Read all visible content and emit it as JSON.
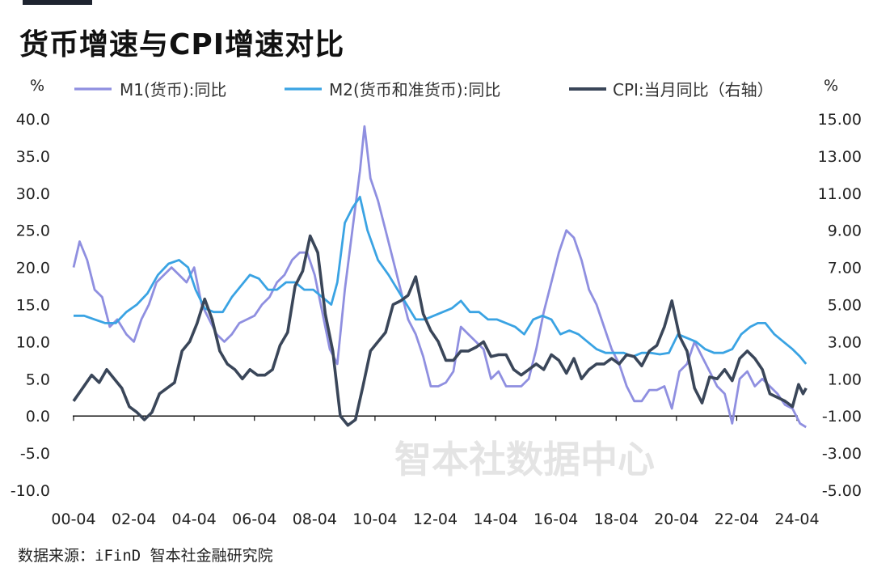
{
  "title": "货币增速与CPI增速对比",
  "source": "数据来源：iFinD 智本社金融研究院",
  "watermark": "智本社数据中心",
  "colors": {
    "M1": "#8f8fe0",
    "M2": "#3aa3e3",
    "CPI": "#3a4659"
  },
  "chart_data": {
    "type": "line",
    "title": "货币增速与CPI增速对比",
    "left_unit": "%",
    "right_unit": "%",
    "x_tick_labels": [
      "00-04",
      "02-04",
      "04-04",
      "06-04",
      "08-04",
      "10-04",
      "12-04",
      "14-04",
      "16-04",
      "18-04",
      "20-04",
      "22-04",
      "24-04"
    ],
    "x_range": [
      2000.25,
      2024.6
    ],
    "left_axis": {
      "min": -10,
      "max": 40,
      "step": 5,
      "tick_labels": [
        "40.0",
        "35.0",
        "30.0",
        "25.0",
        "20.0",
        "15.0",
        "10.0",
        "5.0",
        "0.0",
        "-5.0",
        "-10.0"
      ]
    },
    "right_axis": {
      "min": -5,
      "max": 15,
      "step": 2,
      "tick_labels": [
        "15.00",
        "13.00",
        "11.00",
        "9.00",
        "7.00",
        "5.00",
        "3.00",
        "1.00",
        "-1.00",
        "-3.00",
        "-5.00"
      ]
    },
    "legend_position": "top",
    "series": [
      {
        "name": "M1(货币):同比",
        "axis": "left",
        "points": [
          [
            2000.25,
            20
          ],
          [
            2000.45,
            23.5
          ],
          [
            2000.7,
            21
          ],
          [
            2000.95,
            17
          ],
          [
            2001.2,
            16
          ],
          [
            2001.45,
            12
          ],
          [
            2001.7,
            13
          ],
          [
            2002.0,
            11
          ],
          [
            2002.25,
            10
          ],
          [
            2002.5,
            13
          ],
          [
            2002.75,
            15
          ],
          [
            2003.0,
            18
          ],
          [
            2003.25,
            19
          ],
          [
            2003.5,
            20
          ],
          [
            2003.75,
            19
          ],
          [
            2004.0,
            18
          ],
          [
            2004.25,
            20
          ],
          [
            2004.5,
            15
          ],
          [
            2004.75,
            13
          ],
          [
            2005.0,
            11
          ],
          [
            2005.25,
            10
          ],
          [
            2005.5,
            11
          ],
          [
            2005.75,
            12.5
          ],
          [
            2006.0,
            13
          ],
          [
            2006.25,
            13.5
          ],
          [
            2006.5,
            15
          ],
          [
            2006.75,
            16
          ],
          [
            2007.0,
            18
          ],
          [
            2007.25,
            19
          ],
          [
            2007.5,
            21
          ],
          [
            2007.75,
            22
          ],
          [
            2008.0,
            22
          ],
          [
            2008.25,
            19
          ],
          [
            2008.5,
            14
          ],
          [
            2008.75,
            9
          ],
          [
            2009.0,
            7
          ],
          [
            2009.25,
            17
          ],
          [
            2009.5,
            25
          ],
          [
            2009.75,
            33
          ],
          [
            2009.9,
            39
          ],
          [
            2010.1,
            32
          ],
          [
            2010.35,
            29
          ],
          [
            2010.6,
            25
          ],
          [
            2010.85,
            21
          ],
          [
            2011.1,
            17
          ],
          [
            2011.35,
            13
          ],
          [
            2011.6,
            11
          ],
          [
            2011.85,
            8
          ],
          [
            2012.1,
            4
          ],
          [
            2012.35,
            4
          ],
          [
            2012.6,
            4.5
          ],
          [
            2012.85,
            6
          ],
          [
            2013.1,
            12
          ],
          [
            2013.35,
            11
          ],
          [
            2013.6,
            10
          ],
          [
            2013.85,
            9
          ],
          [
            2014.1,
            5
          ],
          [
            2014.35,
            6
          ],
          [
            2014.6,
            4
          ],
          [
            2014.85,
            4
          ],
          [
            2015.1,
            4
          ],
          [
            2015.35,
            5
          ],
          [
            2015.6,
            9
          ],
          [
            2015.85,
            14
          ],
          [
            2016.1,
            18
          ],
          [
            2016.35,
            22
          ],
          [
            2016.6,
            25
          ],
          [
            2016.85,
            24
          ],
          [
            2017.1,
            21
          ],
          [
            2017.35,
            17
          ],
          [
            2017.6,
            15
          ],
          [
            2017.85,
            12
          ],
          [
            2018.1,
            9
          ],
          [
            2018.35,
            7
          ],
          [
            2018.6,
            4
          ],
          [
            2018.85,
            2
          ],
          [
            2019.1,
            2
          ],
          [
            2019.35,
            3.5
          ],
          [
            2019.6,
            3.5
          ],
          [
            2019.85,
            4
          ],
          [
            2020.1,
            1
          ],
          [
            2020.35,
            6
          ],
          [
            2020.6,
            7
          ],
          [
            2020.85,
            10
          ],
          [
            2021.1,
            8
          ],
          [
            2021.35,
            6
          ],
          [
            2021.6,
            4
          ],
          [
            2021.85,
            3
          ],
          [
            2022.1,
            -1
          ],
          [
            2022.35,
            5
          ],
          [
            2022.6,
            6
          ],
          [
            2022.85,
            4
          ],
          [
            2023.1,
            5
          ],
          [
            2023.35,
            4
          ],
          [
            2023.6,
            3
          ],
          [
            2023.85,
            1.5
          ],
          [
            2024.1,
            1
          ],
          [
            2024.35,
            -1
          ],
          [
            2024.55,
            -1.5
          ]
        ]
      },
      {
        "name": "M2(货币和准货币):同比",
        "axis": "left",
        "points": [
          [
            2000.25,
            13.5
          ],
          [
            2000.6,
            13.5
          ],
          [
            2000.95,
            13
          ],
          [
            2001.3,
            12.5
          ],
          [
            2001.65,
            12.5
          ],
          [
            2002.0,
            14
          ],
          [
            2002.35,
            15
          ],
          [
            2002.7,
            16.5
          ],
          [
            2003.05,
            19
          ],
          [
            2003.4,
            20.5
          ],
          [
            2003.75,
            21
          ],
          [
            2004.05,
            20
          ],
          [
            2004.3,
            17
          ],
          [
            2004.6,
            14.5
          ],
          [
            2004.9,
            14
          ],
          [
            2005.2,
            14
          ],
          [
            2005.5,
            16
          ],
          [
            2005.8,
            17.5
          ],
          [
            2006.1,
            19
          ],
          [
            2006.4,
            18.5
          ],
          [
            2006.7,
            17
          ],
          [
            2007.0,
            17
          ],
          [
            2007.3,
            18
          ],
          [
            2007.6,
            18
          ],
          [
            2007.9,
            17
          ],
          [
            2008.2,
            17
          ],
          [
            2008.5,
            16
          ],
          [
            2008.8,
            15
          ],
          [
            2009.0,
            18
          ],
          [
            2009.25,
            26
          ],
          [
            2009.5,
            28
          ],
          [
            2009.75,
            29.5
          ],
          [
            2010.0,
            25
          ],
          [
            2010.35,
            21
          ],
          [
            2010.7,
            19
          ],
          [
            2011.0,
            17
          ],
          [
            2011.3,
            15
          ],
          [
            2011.6,
            13
          ],
          [
            2011.9,
            13
          ],
          [
            2012.2,
            13.5
          ],
          [
            2012.5,
            14
          ],
          [
            2012.8,
            14.5
          ],
          [
            2013.1,
            15.5
          ],
          [
            2013.4,
            14
          ],
          [
            2013.7,
            14
          ],
          [
            2014.0,
            13
          ],
          [
            2014.3,
            13
          ],
          [
            2014.6,
            12.5
          ],
          [
            2014.9,
            12
          ],
          [
            2015.2,
            11
          ],
          [
            2015.5,
            13
          ],
          [
            2015.8,
            13.5
          ],
          [
            2016.1,
            13
          ],
          [
            2016.4,
            11
          ],
          [
            2016.7,
            11.5
          ],
          [
            2017.0,
            11
          ],
          [
            2017.3,
            10
          ],
          [
            2017.6,
            9
          ],
          [
            2017.9,
            8.5
          ],
          [
            2018.2,
            8.5
          ],
          [
            2018.5,
            8.5
          ],
          [
            2018.8,
            8
          ],
          [
            2019.1,
            8.5
          ],
          [
            2019.4,
            8.5
          ],
          [
            2019.7,
            8.3
          ],
          [
            2020.0,
            8.5
          ],
          [
            2020.3,
            11
          ],
          [
            2020.6,
            10.5
          ],
          [
            2020.9,
            10
          ],
          [
            2021.2,
            9
          ],
          [
            2021.5,
            8.5
          ],
          [
            2021.8,
            8.5
          ],
          [
            2022.1,
            9
          ],
          [
            2022.4,
            11
          ],
          [
            2022.7,
            12
          ],
          [
            2022.95,
            12.5
          ],
          [
            2023.2,
            12.5
          ],
          [
            2023.5,
            11
          ],
          [
            2023.8,
            10
          ],
          [
            2024.1,
            9
          ],
          [
            2024.35,
            8
          ],
          [
            2024.55,
            7
          ]
        ]
      },
      {
        "name": "CPI:当月同比（右轴）",
        "axis": "right",
        "points": [
          [
            2000.25,
            -0.2
          ],
          [
            2000.55,
            0.5
          ],
          [
            2000.85,
            1.2
          ],
          [
            2001.1,
            0.8
          ],
          [
            2001.35,
            1.5
          ],
          [
            2001.6,
            1
          ],
          [
            2001.85,
            0.5
          ],
          [
            2002.1,
            -0.5
          ],
          [
            2002.35,
            -0.8
          ],
          [
            2002.6,
            -1.2
          ],
          [
            2002.85,
            -0.8
          ],
          [
            2003.1,
            0.2
          ],
          [
            2003.35,
            0.5
          ],
          [
            2003.6,
            0.8
          ],
          [
            2003.85,
            2.5
          ],
          [
            2004.1,
            3
          ],
          [
            2004.35,
            4
          ],
          [
            2004.6,
            5.3
          ],
          [
            2004.85,
            4.2
          ],
          [
            2005.1,
            2.5
          ],
          [
            2005.35,
            1.8
          ],
          [
            2005.6,
            1.5
          ],
          [
            2005.85,
            1
          ],
          [
            2006.1,
            1.5
          ],
          [
            2006.35,
            1.2
          ],
          [
            2006.6,
            1.2
          ],
          [
            2006.85,
            1.5
          ],
          [
            2007.1,
            2.8
          ],
          [
            2007.35,
            3.5
          ],
          [
            2007.6,
            6
          ],
          [
            2007.85,
            6.8
          ],
          [
            2008.1,
            8.7
          ],
          [
            2008.35,
            7.8
          ],
          [
            2008.6,
            4.5
          ],
          [
            2008.85,
            2.5
          ],
          [
            2009.1,
            -1
          ],
          [
            2009.35,
            -1.5
          ],
          [
            2009.6,
            -1.2
          ],
          [
            2009.85,
            0.6
          ],
          [
            2010.1,
            2.5
          ],
          [
            2010.35,
            3
          ],
          [
            2010.6,
            3.5
          ],
          [
            2010.85,
            5
          ],
          [
            2011.1,
            5.2
          ],
          [
            2011.35,
            5.5
          ],
          [
            2011.6,
            6.5
          ],
          [
            2011.85,
            4.5
          ],
          [
            2012.1,
            3.6
          ],
          [
            2012.35,
            3
          ],
          [
            2012.6,
            2
          ],
          [
            2012.85,
            2
          ],
          [
            2013.1,
            2.5
          ],
          [
            2013.35,
            2.5
          ],
          [
            2013.6,
            2.7
          ],
          [
            2013.85,
            3
          ],
          [
            2014.1,
            2.2
          ],
          [
            2014.35,
            2.3
          ],
          [
            2014.6,
            2.3
          ],
          [
            2014.85,
            1.5
          ],
          [
            2015.1,
            1.2
          ],
          [
            2015.35,
            1.5
          ],
          [
            2015.6,
            1.8
          ],
          [
            2015.85,
            1.5
          ],
          [
            2016.1,
            2.3
          ],
          [
            2016.35,
            2
          ],
          [
            2016.6,
            1.3
          ],
          [
            2016.85,
            2.1
          ],
          [
            2017.1,
            1
          ],
          [
            2017.35,
            1.5
          ],
          [
            2017.6,
            1.8
          ],
          [
            2017.85,
            1.8
          ],
          [
            2018.1,
            2.1
          ],
          [
            2018.35,
            1.8
          ],
          [
            2018.6,
            2.3
          ],
          [
            2018.85,
            2.2
          ],
          [
            2019.1,
            1.7
          ],
          [
            2019.35,
            2.5
          ],
          [
            2019.6,
            2.8
          ],
          [
            2019.85,
            3.8
          ],
          [
            2020.1,
            5.2
          ],
          [
            2020.35,
            3.3
          ],
          [
            2020.6,
            2.5
          ],
          [
            2020.85,
            0.5
          ],
          [
            2021.1,
            -0.3
          ],
          [
            2021.35,
            1.1
          ],
          [
            2021.6,
            1
          ],
          [
            2021.85,
            1.5
          ],
          [
            2022.1,
            0.9
          ],
          [
            2022.35,
            2.1
          ],
          [
            2022.6,
            2.5
          ],
          [
            2022.85,
            2.1
          ],
          [
            2023.1,
            1.5
          ],
          [
            2023.35,
            0.2
          ],
          [
            2023.6,
            0
          ],
          [
            2023.85,
            -0.2
          ],
          [
            2024.1,
            -0.5
          ],
          [
            2024.3,
            0.7
          ],
          [
            2024.45,
            0.2
          ],
          [
            2024.55,
            0.5
          ]
        ]
      }
    ]
  }
}
